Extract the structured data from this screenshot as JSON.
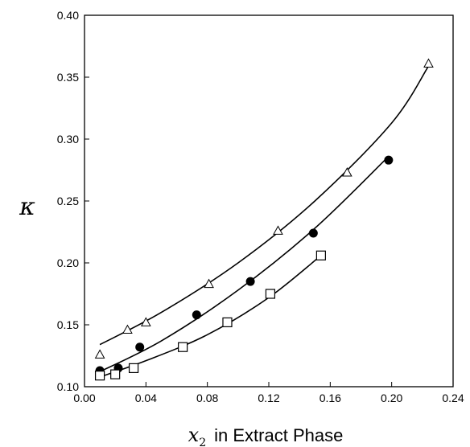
{
  "chart_data": {
    "type": "scatter",
    "xlabel": {
      "symbol": "x",
      "subscript": "2",
      "text": "in Extract Phase"
    },
    "ylabel": "κ",
    "xlim": [
      0.0,
      0.24
    ],
    "ylim": [
      0.1,
      0.4
    ],
    "xticks": [
      "0.00",
      "0.04",
      "0.08",
      "0.12",
      "0.16",
      "0.20",
      "0.24"
    ],
    "yticks": [
      "0.10",
      "0.15",
      "0.20",
      "0.25",
      "0.30",
      "0.35",
      "0.40"
    ],
    "grid": false,
    "series": [
      {
        "marker": "open-triangle",
        "points": [
          [
            0.01,
            0.126
          ],
          [
            0.028,
            0.146
          ],
          [
            0.04,
            0.152
          ],
          [
            0.081,
            0.183
          ],
          [
            0.126,
            0.226
          ],
          [
            0.171,
            0.273
          ],
          [
            0.224,
            0.361
          ]
        ],
        "fit": [
          [
            0.01,
            0.134
          ],
          [
            0.05,
            0.16
          ],
          [
            0.1,
            0.2
          ],
          [
            0.15,
            0.25
          ],
          [
            0.2,
            0.313
          ],
          [
            0.224,
            0.359
          ]
        ]
      },
      {
        "marker": "filled-circle",
        "points": [
          [
            0.01,
            0.113
          ],
          [
            0.022,
            0.115
          ],
          [
            0.036,
            0.132
          ],
          [
            0.073,
            0.158
          ],
          [
            0.108,
            0.185
          ],
          [
            0.149,
            0.224
          ],
          [
            0.198,
            0.283
          ]
        ],
        "fit": [
          [
            0.008,
            0.111
          ],
          [
            0.05,
            0.137
          ],
          [
            0.1,
            0.178
          ],
          [
            0.15,
            0.228
          ],
          [
            0.198,
            0.286
          ]
        ]
      },
      {
        "marker": "open-square",
        "points": [
          [
            0.01,
            0.109
          ],
          [
            0.02,
            0.11
          ],
          [
            0.032,
            0.115
          ],
          [
            0.064,
            0.132
          ],
          [
            0.093,
            0.152
          ],
          [
            0.121,
            0.175
          ],
          [
            0.154,
            0.206
          ]
        ],
        "fit": [
          [
            0.008,
            0.107
          ],
          [
            0.04,
            0.121
          ],
          [
            0.08,
            0.142
          ],
          [
            0.12,
            0.172
          ],
          [
            0.154,
            0.206
          ]
        ]
      }
    ]
  }
}
